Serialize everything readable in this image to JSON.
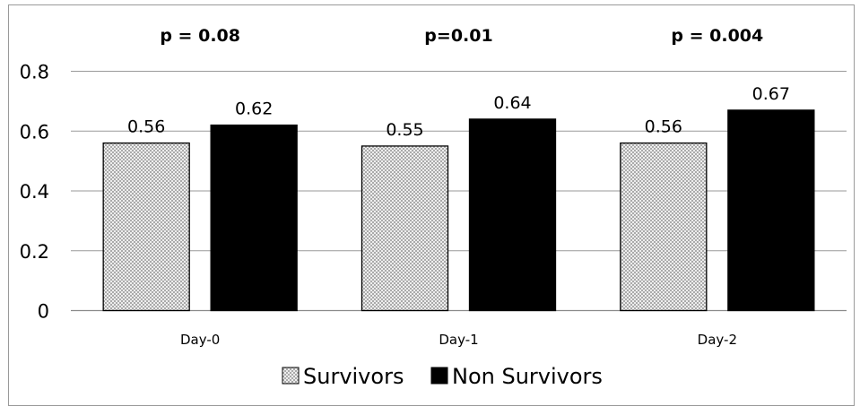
{
  "chart_data": {
    "type": "bar",
    "categories": [
      "Day-0",
      "Day-1",
      "Day-2"
    ],
    "series": [
      {
        "name": "Survivors",
        "values": [
          0.56,
          0.55,
          0.56
        ],
        "value_labels": [
          "0.56",
          "0.55",
          "0.56"
        ],
        "fill": "pattern-crosshatch"
      },
      {
        "name": "Non Survivors",
        "values": [
          0.62,
          0.64,
          0.67
        ],
        "value_labels": [
          "0.62",
          "0.64",
          "0.67"
        ],
        "fill": "#000000"
      }
    ],
    "annotations": [
      "p = 0.08",
      "p=0.01",
      "p = 0.004"
    ],
    "yticks": [
      "0",
      "0.2",
      "0.4",
      "0.6",
      "0.8"
    ],
    "ytick_values": [
      0,
      0.2,
      0.4,
      0.6,
      0.8
    ],
    "ylim": [
      0,
      0.8
    ],
    "grid": true,
    "legend_position": "bottom",
    "title": "",
    "xlabel": "",
    "ylabel": ""
  }
}
